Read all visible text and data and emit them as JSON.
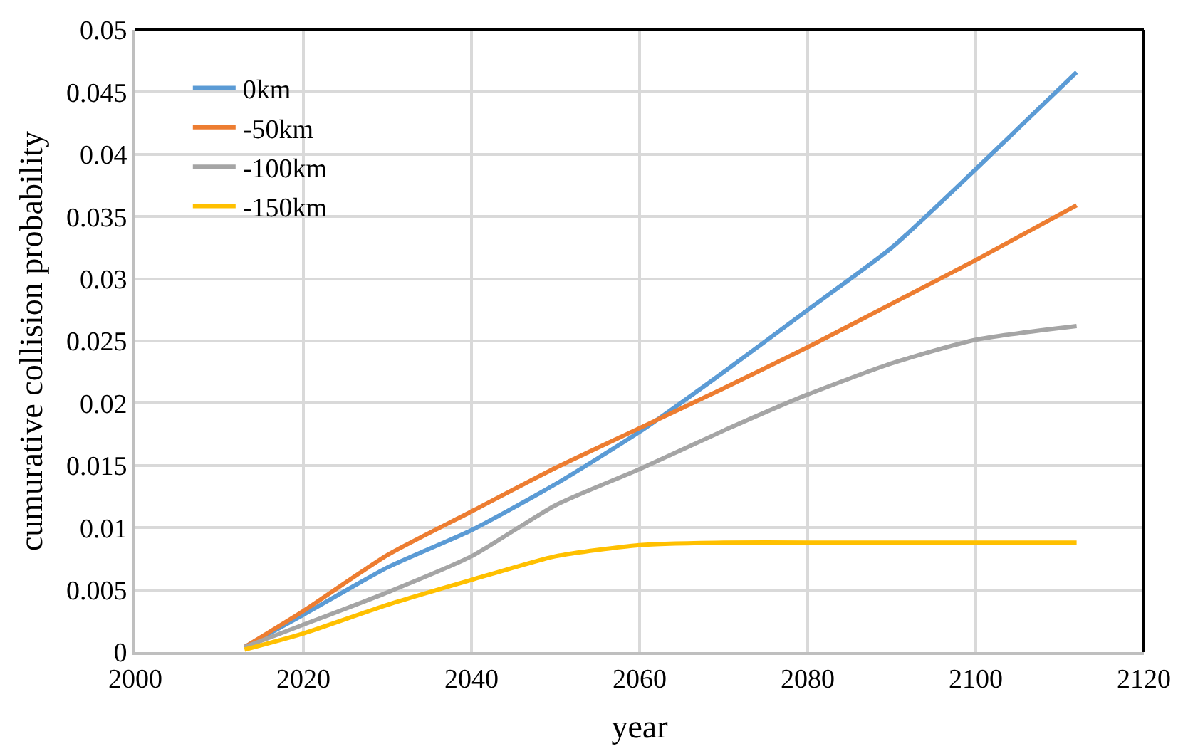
{
  "chart_data": {
    "type": "line",
    "xlabel": "year",
    "ylabel": "cumurative collision probability",
    "x": [
      2013,
      2020,
      2030,
      2040,
      2050,
      2060,
      2070,
      2080,
      2090,
      2100,
      2112
    ],
    "series": [
      {
        "name": "0km",
        "color": "#5b9bd5",
        "values": [
          0.0004,
          0.003,
          0.0068,
          0.0098,
          0.0135,
          0.0177,
          0.0225,
          0.0275,
          0.0325,
          0.0388,
          0.0466
        ]
      },
      {
        "name": "-50km",
        "color": "#ed7d31",
        "values": [
          0.0004,
          0.0033,
          0.0078,
          0.0113,
          0.0148,
          0.018,
          0.0212,
          0.0245,
          0.028,
          0.0315,
          0.0359
        ]
      },
      {
        "name": "-100km",
        "color": "#a5a5a5",
        "values": [
          0.0004,
          0.0022,
          0.0048,
          0.0077,
          0.0118,
          0.0147,
          0.0178,
          0.0207,
          0.0232,
          0.0251,
          0.0262
        ]
      },
      {
        "name": "-150km",
        "color": "#ffc000",
        "values": [
          0.0002,
          0.0015,
          0.0038,
          0.0058,
          0.0077,
          0.0086,
          0.0088,
          0.0088,
          0.0088,
          0.0088,
          0.0088
        ]
      }
    ],
    "xlim": [
      2000,
      2120
    ],
    "xticks": [
      2000,
      2020,
      2040,
      2060,
      2080,
      2100,
      2120
    ],
    "ylim": [
      0,
      0.05
    ],
    "yticks": [
      0,
      0.005,
      0.01,
      0.015,
      0.02,
      0.025,
      0.03,
      0.035,
      0.04,
      0.045,
      0.05
    ],
    "grid": true,
    "legend": "top left",
    "marker": "none",
    "line_style": "solid"
  }
}
